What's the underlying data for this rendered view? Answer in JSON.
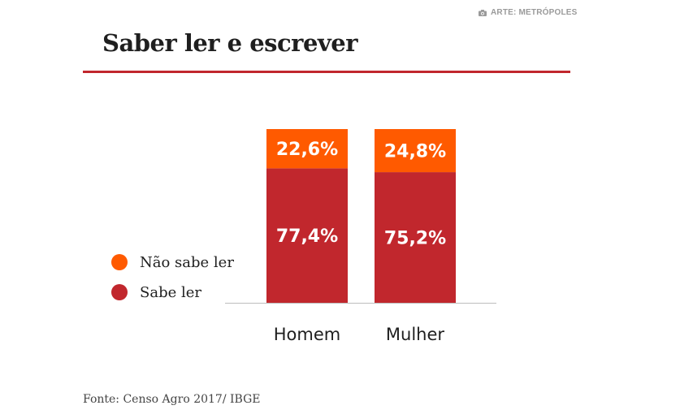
{
  "credit": {
    "icon": "camera-icon",
    "text": "ARTE: METRÓPOLES",
    "color": "#9a9a9a"
  },
  "title": "Saber ler e escrever",
  "source": "Fonte: Censo Agro 2017/ IBGE",
  "chart_data": {
    "type": "bar",
    "stacked": true,
    "categories": [
      "Homem",
      "Mulher"
    ],
    "series": [
      {
        "name": "Sabe ler",
        "color": "#c1272d",
        "values": [
          77.4,
          75.2
        ],
        "labels": [
          "77,4%",
          "75,2%"
        ]
      },
      {
        "name": "Não sabe ler",
        "color": "#ff5a00",
        "values": [
          22.6,
          24.8
        ],
        "labels": [
          "22,6%",
          "24,8%"
        ]
      }
    ],
    "legend_order": [
      "Não sabe ler",
      "Sabe ler"
    ],
    "ylim": [
      0,
      100
    ],
    "unit": "%",
    "grid": false,
    "legend_position": "left"
  }
}
